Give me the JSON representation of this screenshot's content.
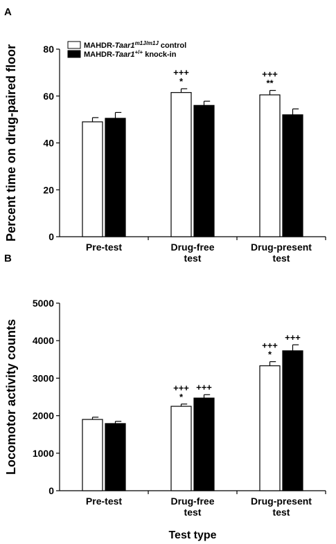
{
  "figure": {
    "panel_a_letter": "A",
    "panel_b_letter": "B",
    "x_title": "Test type"
  },
  "legend": {
    "control": {
      "prefix": "MAHDR-",
      "gene": "Taar1",
      "sup": "m1J/m1J",
      "suffix": " control",
      "color": "#ffffff"
    },
    "knockin": {
      "prefix": "MAHDR-",
      "gene": "Taar1",
      "sup": "+/+",
      "suffix": " knock-in",
      "color": "#000000"
    }
  },
  "chart_data": [
    {
      "type": "bar",
      "panel": "A",
      "ylabel": "Percent time on drug-paired floor",
      "xlabel": "",
      "ylim": [
        0,
        80
      ],
      "yticks": [
        "0",
        "20",
        "40",
        "60",
        "80"
      ],
      "categories": [
        [
          "Pre-test"
        ],
        [
          "Drug-free",
          "test"
        ],
        [
          "Drug-present",
          "test"
        ]
      ],
      "series": [
        {
          "name": "MAHDR-Taar1m1J/m1J control",
          "color": "#ffffff",
          "values": [
            49,
            61.5,
            60.5
          ],
          "errors": [
            1.8,
            1.6,
            1.9
          ],
          "labels": [
            [],
            [
              "+++",
              "*"
            ],
            [
              "+++",
              "**"
            ]
          ]
        },
        {
          "name": "MAHDR-Taar1+/+ knock-in",
          "color": "#000000",
          "values": [
            50.5,
            56,
            52
          ],
          "errors": [
            2.5,
            1.8,
            2.5
          ],
          "labels": [
            [],
            [],
            []
          ]
        }
      ]
    },
    {
      "type": "bar",
      "panel": "B",
      "ylabel": "Locomotor activity counts",
      "xlabel": "Test type",
      "ylim": [
        0,
        5000
      ],
      "yticks": [
        "0",
        "1000",
        "2000",
        "3000",
        "4000",
        "5000"
      ],
      "categories": [
        [
          "Pre-test"
        ],
        [
          "Drug-free",
          "test"
        ],
        [
          "Drug-present",
          "test"
        ]
      ],
      "series": [
        {
          "name": "MAHDR-Taar1m1J/m1J control",
          "color": "#ffffff",
          "values": [
            1900,
            2250,
            3330
          ],
          "errors": [
            60,
            60,
            110
          ],
          "labels": [
            [],
            [
              "+++",
              "*"
            ],
            [
              "+++",
              "*"
            ]
          ]
        },
        {
          "name": "MAHDR-Taar1+/+ knock-in",
          "color": "#000000",
          "values": [
            1790,
            2470,
            3730
          ],
          "errors": [
            60,
            90,
            160
          ],
          "labels": [
            [],
            [
              "+++"
            ],
            [
              "+++"
            ]
          ]
        }
      ]
    }
  ]
}
